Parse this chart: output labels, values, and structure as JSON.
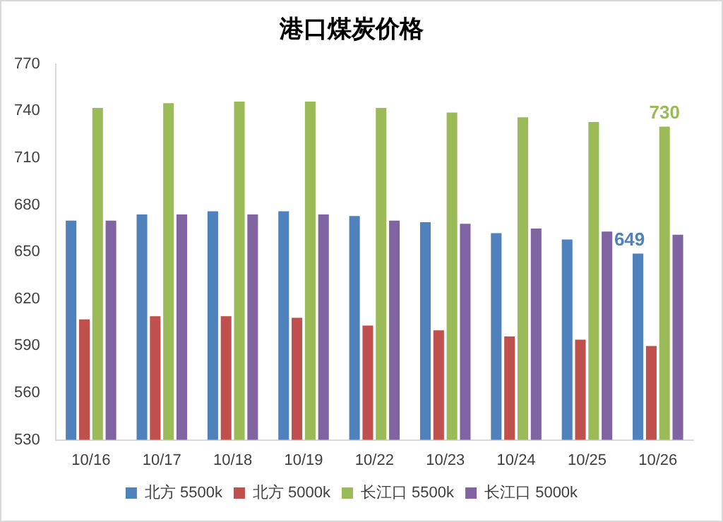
{
  "chart_data": {
    "type": "bar",
    "title": "港口煤炭价格",
    "categories": [
      "10/16",
      "10/17",
      "10/18",
      "10/19",
      "10/22",
      "10/23",
      "10/24",
      "10/25",
      "10/26"
    ],
    "series": [
      {
        "name": "北方 5500k",
        "color": "#4f81bd",
        "values": [
          670,
          674,
          676,
          676,
          673,
          669,
          662,
          658,
          649
        ],
        "value_labels": [
          null,
          null,
          null,
          null,
          null,
          null,
          null,
          null,
          "649"
        ]
      },
      {
        "name": "北方 5000k",
        "color": "#c0504d",
        "values": [
          607,
          609,
          609,
          608,
          603,
          600,
          596,
          594,
          590
        ]
      },
      {
        "name": "长江口 5500k",
        "color": "#9bbb59",
        "values": [
          742,
          745,
          746,
          746,
          742,
          739,
          736,
          733,
          730
        ],
        "value_labels": [
          null,
          null,
          null,
          null,
          null,
          null,
          null,
          null,
          "730"
        ]
      },
      {
        "name": "长江口 5000k",
        "color": "#8064a2",
        "values": [
          670,
          674,
          674,
          674,
          670,
          668,
          665,
          663,
          661
        ]
      }
    ],
    "ylim": [
      530,
      770
    ],
    "yticks": [
      530,
      560,
      590,
      620,
      650,
      680,
      710,
      740,
      770
    ],
    "grid": false,
    "legend": "bottom"
  }
}
